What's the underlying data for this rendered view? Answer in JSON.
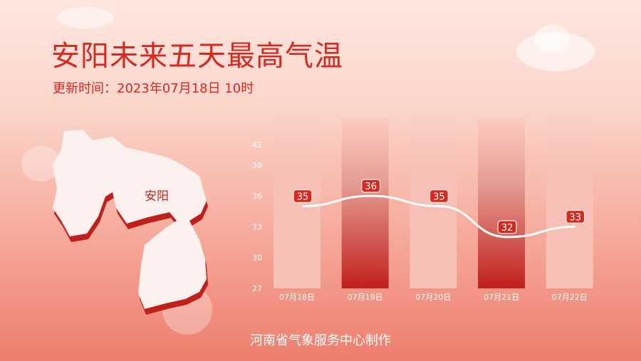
{
  "header": {
    "title": "安阳未来五天最高气温",
    "update_label": "更新时间：2023年07月18日 10时"
  },
  "map": {
    "region_label": "安阳"
  },
  "footer": {
    "credit": "河南省气象服务中心制作"
  },
  "colors": {
    "accent": "#d42a22",
    "bar_light": "#f7c0b6",
    "bar_dark": "#c0201c",
    "line": "#ffffff"
  },
  "chart_data": {
    "type": "bar+line",
    "categories": [
      "07月18日",
      "07月19日",
      "07月20日",
      "07月21日",
      "07月22日"
    ],
    "series": [
      {
        "values": [
          35,
          36,
          35,
          32,
          33
        ]
      }
    ],
    "y_ticks": [
      27,
      30,
      33,
      36,
      39,
      41
    ],
    "ylim": [
      27,
      41
    ],
    "highlighted_bars": [
      "07月19日",
      "07月21日"
    ],
    "grid": false,
    "legend": "none"
  }
}
